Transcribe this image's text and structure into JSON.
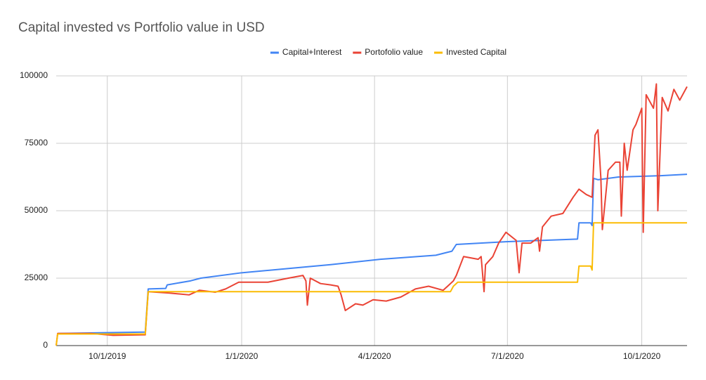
{
  "chart_data": {
    "type": "line",
    "title": "Capital invested vs Portfolio value in USD",
    "legend": "top",
    "grid": true,
    "xlim": [
      "2019-08-27",
      "2020-11-01"
    ],
    "xticks": [
      {
        "value": "2019-10-01",
        "label": "10/1/2019"
      },
      {
        "value": "2020-01-01",
        "label": "1/1/2020"
      },
      {
        "value": "2020-04-01",
        "label": "4/1/2020"
      },
      {
        "value": "2020-07-01",
        "label": "7/1/2020"
      },
      {
        "value": "2020-10-01",
        "label": "10/1/2020"
      }
    ],
    "ylim": [
      0,
      100000
    ],
    "yticks": [
      0,
      25000,
      50000,
      75000,
      100000
    ],
    "series": [
      {
        "name": "Capital+Interest",
        "color": "#4285f4",
        "x": [
          "2019-08-28",
          "2019-10-27",
          "2019-10-29",
          "2019-11-10",
          "2019-11-11",
          "2019-11-27",
          "2019-12-04",
          "2020-01-01",
          "2020-03-02",
          "2020-04-05",
          "2020-05-13",
          "2020-05-24",
          "2020-05-27",
          "2020-06-30",
          "2020-08-18",
          "2020-08-19",
          "2020-08-27",
          "2020-08-28",
          "2020-08-29",
          "2020-09-01",
          "2020-09-15",
          "2020-10-14",
          "2020-11-01"
        ],
        "values": [
          4500,
          5000,
          21000,
          21200,
          22500,
          24000,
          25000,
          27000,
          30000,
          32000,
          33500,
          35000,
          37500,
          38500,
          39500,
          45500,
          45500,
          44500,
          62000,
          61500,
          62500,
          63000,
          63500
        ]
      },
      {
        "name": "Portofolio value",
        "color": "#ea4335",
        "x": [
          "2019-08-27",
          "2019-08-28",
          "2019-09-20",
          "2019-10-05",
          "2019-10-27",
          "2019-10-29",
          "2019-11-12",
          "2019-11-26",
          "2019-12-03",
          "2019-12-14",
          "2019-12-21",
          "2019-12-30",
          "2020-01-19",
          "2020-02-02",
          "2020-02-12",
          "2020-02-14",
          "2020-02-15",
          "2020-02-17",
          "2020-02-24",
          "2020-03-02",
          "2020-03-07",
          "2020-03-09",
          "2020-03-12",
          "2020-03-19",
          "2020-03-24",
          "2020-03-31",
          "2020-04-09",
          "2020-04-19",
          "2020-04-29",
          "2020-05-08",
          "2020-05-18",
          "2020-05-25",
          "2020-05-27",
          "2020-06-01",
          "2020-06-11",
          "2020-06-13",
          "2020-06-15",
          "2020-06-16",
          "2020-06-21",
          "2020-06-25",
          "2020-06-30",
          "2020-07-07",
          "2020-07-09",
          "2020-07-11",
          "2020-07-17",
          "2020-07-22",
          "2020-07-23",
          "2020-07-25",
          "2020-07-31",
          "2020-08-08",
          "2020-08-15",
          "2020-08-19",
          "2020-08-24",
          "2020-08-28",
          "2020-08-30",
          "2020-09-01",
          "2020-09-03",
          "2020-09-04",
          "2020-09-08",
          "2020-09-13",
          "2020-09-16",
          "2020-09-17",
          "2020-09-19",
          "2020-09-21",
          "2020-09-25",
          "2020-09-27",
          "2020-10-01",
          "2020-10-02",
          "2020-10-04",
          "2020-10-09",
          "2020-10-11",
          "2020-10-12",
          "2020-10-15",
          "2020-10-19",
          "2020-10-23",
          "2020-10-27",
          "2020-11-01"
        ],
        "values": [
          0,
          4500,
          4500,
          3800,
          4000,
          20000,
          19500,
          18800,
          20500,
          19800,
          21000,
          23500,
          23500,
          25000,
          26000,
          24000,
          15000,
          25000,
          23000,
          22500,
          22000,
          19000,
          13000,
          15500,
          15000,
          17000,
          16500,
          18000,
          21000,
          22000,
          20500,
          24000,
          26000,
          33000,
          32000,
          33000,
          20000,
          30000,
          33000,
          38000,
          42000,
          39000,
          27000,
          38000,
          38000,
          40000,
          35000,
          44000,
          48000,
          49000,
          55000,
          58000,
          56000,
          55000,
          78000,
          80000,
          62000,
          43000,
          65000,
          68000,
          68000,
          48000,
          75000,
          65000,
          80000,
          82000,
          88000,
          42000,
          93000,
          88000,
          97000,
          50000,
          92000,
          87000,
          95000,
          91000,
          96000
        ]
      },
      {
        "name": "Invested Capital",
        "color": "#fbbc04",
        "x": [
          "2019-08-27",
          "2019-08-28",
          "2019-10-27",
          "2019-10-29",
          "2020-05-23",
          "2020-05-25",
          "2020-05-28",
          "2020-08-18",
          "2020-08-19",
          "2020-08-27",
          "2020-08-28",
          "2020-08-29",
          "2020-11-01"
        ],
        "values": [
          0,
          4300,
          4300,
          20000,
          20000,
          22000,
          23500,
          23500,
          29500,
          29500,
          28000,
          45500,
          45500
        ]
      }
    ]
  }
}
